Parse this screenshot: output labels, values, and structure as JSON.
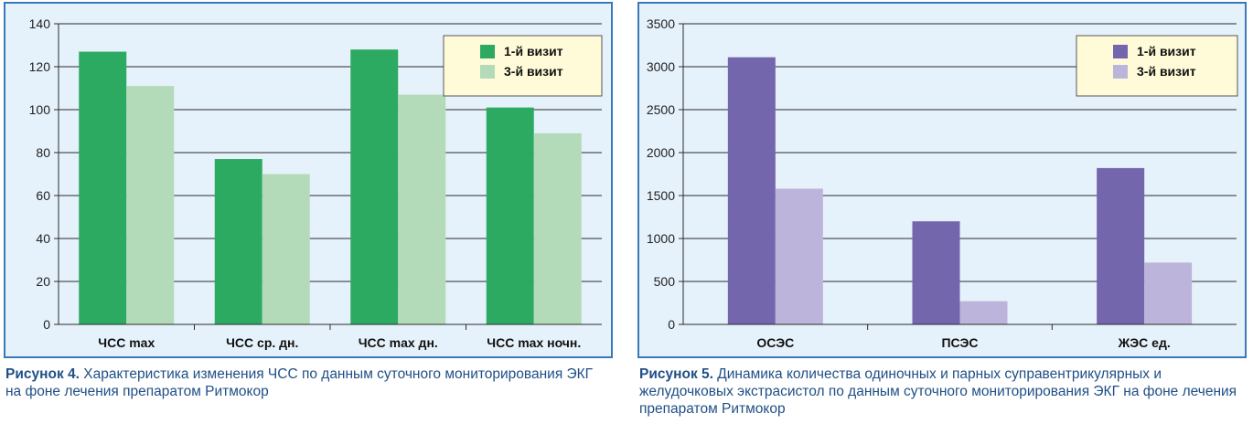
{
  "chart_data": [
    {
      "type": "bar",
      "categories": [
        "ЧСС max",
        "ЧСС ср. дн.",
        "ЧСС max дн.",
        "ЧСС max ночн."
      ],
      "series": [
        {
          "name": "1-й визит",
          "values": [
            127,
            77,
            128,
            101
          ],
          "color": "#2daa62"
        },
        {
          "name": "3-й визит",
          "values": [
            111,
            70,
            107,
            89
          ],
          "color": "#b4dbb9"
        }
      ],
      "ylim": [
        0,
        140
      ],
      "yticks": [
        0,
        20,
        40,
        60,
        80,
        100,
        120,
        140
      ],
      "grid": true,
      "legend": "top-right",
      "caption_label": "Рисунок 4.",
      "caption_text": "Характеристика изменения ЧСС по данным суточного мониторирования ЭКГ на фоне лечения препаратом Ритмокор"
    },
    {
      "type": "bar",
      "categories": [
        "ОСЭС",
        "ПСЭС",
        "ЖЭС ед."
      ],
      "series": [
        {
          "name": "1-й визит",
          "values": [
            3110,
            1200,
            1820
          ],
          "color": "#7366ad"
        },
        {
          "name": "3-й визит",
          "values": [
            1580,
            270,
            720
          ],
          "color": "#bcb4da"
        }
      ],
      "ylim": [
        0,
        3500
      ],
      "yticks": [
        0,
        500,
        1000,
        1500,
        2000,
        2500,
        3000,
        3500
      ],
      "grid": true,
      "legend": "top-right",
      "caption_label": "Рисунок 5.",
      "caption_text": "Динамика количества одиночных и парных суправентрикулярных и желудочковых экстрасистол по данным суточного мониторирования ЭКГ на фоне лечения препаратом Ритмокор"
    }
  ]
}
